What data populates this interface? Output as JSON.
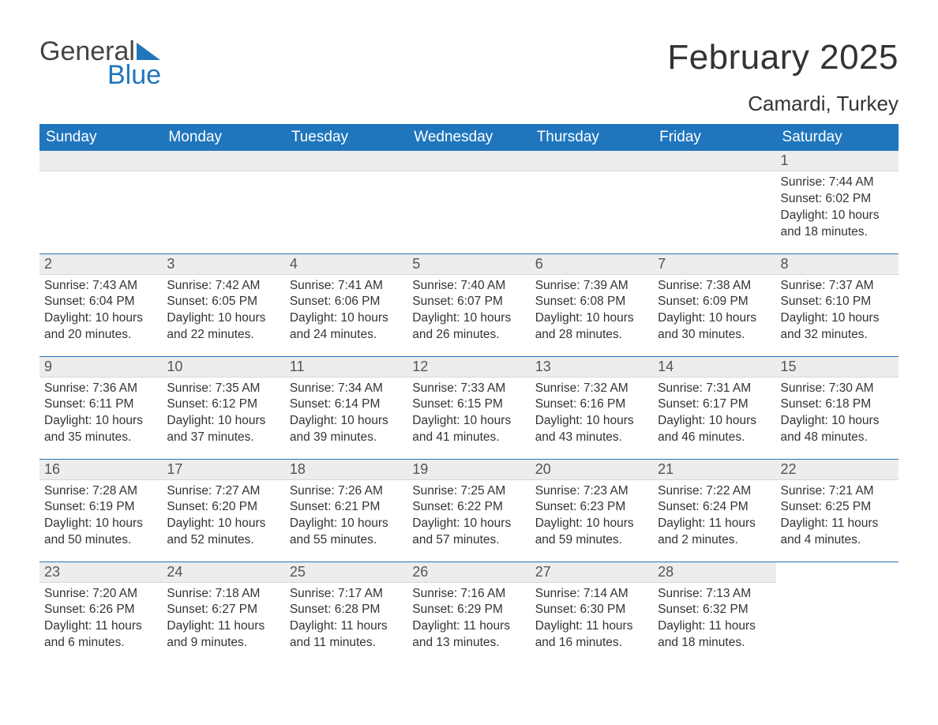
{
  "logo": {
    "general": "General",
    "blue": "Blue"
  },
  "title": "February 2025",
  "location": "Camardi, Turkey",
  "colors": {
    "header_bg": "#2076bd",
    "header_fg": "#ffffff",
    "daynum_bg": "#ededed",
    "row_border": "#2076bd",
    "text": "#333333",
    "logo_blue": "#2076bd",
    "logo_gray": "#444444",
    "page_bg": "#ffffff"
  },
  "weekdays": [
    "Sunday",
    "Monday",
    "Tuesday",
    "Wednesday",
    "Thursday",
    "Friday",
    "Saturday"
  ],
  "weeks": [
    [
      {
        "n": ""
      },
      {
        "n": ""
      },
      {
        "n": ""
      },
      {
        "n": ""
      },
      {
        "n": ""
      },
      {
        "n": ""
      },
      {
        "n": "1",
        "sr": "Sunrise: 7:44 AM",
        "ss": "Sunset: 6:02 PM",
        "d1": "Daylight: 10 hours",
        "d2": "and 18 minutes."
      }
    ],
    [
      {
        "n": "2",
        "sr": "Sunrise: 7:43 AM",
        "ss": "Sunset: 6:04 PM",
        "d1": "Daylight: 10 hours",
        "d2": "and 20 minutes."
      },
      {
        "n": "3",
        "sr": "Sunrise: 7:42 AM",
        "ss": "Sunset: 6:05 PM",
        "d1": "Daylight: 10 hours",
        "d2": "and 22 minutes."
      },
      {
        "n": "4",
        "sr": "Sunrise: 7:41 AM",
        "ss": "Sunset: 6:06 PM",
        "d1": "Daylight: 10 hours",
        "d2": "and 24 minutes."
      },
      {
        "n": "5",
        "sr": "Sunrise: 7:40 AM",
        "ss": "Sunset: 6:07 PM",
        "d1": "Daylight: 10 hours",
        "d2": "and 26 minutes."
      },
      {
        "n": "6",
        "sr": "Sunrise: 7:39 AM",
        "ss": "Sunset: 6:08 PM",
        "d1": "Daylight: 10 hours",
        "d2": "and 28 minutes."
      },
      {
        "n": "7",
        "sr": "Sunrise: 7:38 AM",
        "ss": "Sunset: 6:09 PM",
        "d1": "Daylight: 10 hours",
        "d2": "and 30 minutes."
      },
      {
        "n": "8",
        "sr": "Sunrise: 7:37 AM",
        "ss": "Sunset: 6:10 PM",
        "d1": "Daylight: 10 hours",
        "d2": "and 32 minutes."
      }
    ],
    [
      {
        "n": "9",
        "sr": "Sunrise: 7:36 AM",
        "ss": "Sunset: 6:11 PM",
        "d1": "Daylight: 10 hours",
        "d2": "and 35 minutes."
      },
      {
        "n": "10",
        "sr": "Sunrise: 7:35 AM",
        "ss": "Sunset: 6:12 PM",
        "d1": "Daylight: 10 hours",
        "d2": "and 37 minutes."
      },
      {
        "n": "11",
        "sr": "Sunrise: 7:34 AM",
        "ss": "Sunset: 6:14 PM",
        "d1": "Daylight: 10 hours",
        "d2": "and 39 minutes."
      },
      {
        "n": "12",
        "sr": "Sunrise: 7:33 AM",
        "ss": "Sunset: 6:15 PM",
        "d1": "Daylight: 10 hours",
        "d2": "and 41 minutes."
      },
      {
        "n": "13",
        "sr": "Sunrise: 7:32 AM",
        "ss": "Sunset: 6:16 PM",
        "d1": "Daylight: 10 hours",
        "d2": "and 43 minutes."
      },
      {
        "n": "14",
        "sr": "Sunrise: 7:31 AM",
        "ss": "Sunset: 6:17 PM",
        "d1": "Daylight: 10 hours",
        "d2": "and 46 minutes."
      },
      {
        "n": "15",
        "sr": "Sunrise: 7:30 AM",
        "ss": "Sunset: 6:18 PM",
        "d1": "Daylight: 10 hours",
        "d2": "and 48 minutes."
      }
    ],
    [
      {
        "n": "16",
        "sr": "Sunrise: 7:28 AM",
        "ss": "Sunset: 6:19 PM",
        "d1": "Daylight: 10 hours",
        "d2": "and 50 minutes."
      },
      {
        "n": "17",
        "sr": "Sunrise: 7:27 AM",
        "ss": "Sunset: 6:20 PM",
        "d1": "Daylight: 10 hours",
        "d2": "and 52 minutes."
      },
      {
        "n": "18",
        "sr": "Sunrise: 7:26 AM",
        "ss": "Sunset: 6:21 PM",
        "d1": "Daylight: 10 hours",
        "d2": "and 55 minutes."
      },
      {
        "n": "19",
        "sr": "Sunrise: 7:25 AM",
        "ss": "Sunset: 6:22 PM",
        "d1": "Daylight: 10 hours",
        "d2": "and 57 minutes."
      },
      {
        "n": "20",
        "sr": "Sunrise: 7:23 AM",
        "ss": "Sunset: 6:23 PM",
        "d1": "Daylight: 10 hours",
        "d2": "and 59 minutes."
      },
      {
        "n": "21",
        "sr": "Sunrise: 7:22 AM",
        "ss": "Sunset: 6:24 PM",
        "d1": "Daylight: 11 hours",
        "d2": "and 2 minutes."
      },
      {
        "n": "22",
        "sr": "Sunrise: 7:21 AM",
        "ss": "Sunset: 6:25 PM",
        "d1": "Daylight: 11 hours",
        "d2": "and 4 minutes."
      }
    ],
    [
      {
        "n": "23",
        "sr": "Sunrise: 7:20 AM",
        "ss": "Sunset: 6:26 PM",
        "d1": "Daylight: 11 hours",
        "d2": "and 6 minutes."
      },
      {
        "n": "24",
        "sr": "Sunrise: 7:18 AM",
        "ss": "Sunset: 6:27 PM",
        "d1": "Daylight: 11 hours",
        "d2": "and 9 minutes."
      },
      {
        "n": "25",
        "sr": "Sunrise: 7:17 AM",
        "ss": "Sunset: 6:28 PM",
        "d1": "Daylight: 11 hours",
        "d2": "and 11 minutes."
      },
      {
        "n": "26",
        "sr": "Sunrise: 7:16 AM",
        "ss": "Sunset: 6:29 PM",
        "d1": "Daylight: 11 hours",
        "d2": "and 13 minutes."
      },
      {
        "n": "27",
        "sr": "Sunrise: 7:14 AM",
        "ss": "Sunset: 6:30 PM",
        "d1": "Daylight: 11 hours",
        "d2": "and 16 minutes."
      },
      {
        "n": "28",
        "sr": "Sunrise: 7:13 AM",
        "ss": "Sunset: 6:32 PM",
        "d1": "Daylight: 11 hours",
        "d2": "and 18 minutes."
      },
      {
        "n": ""
      }
    ]
  ]
}
